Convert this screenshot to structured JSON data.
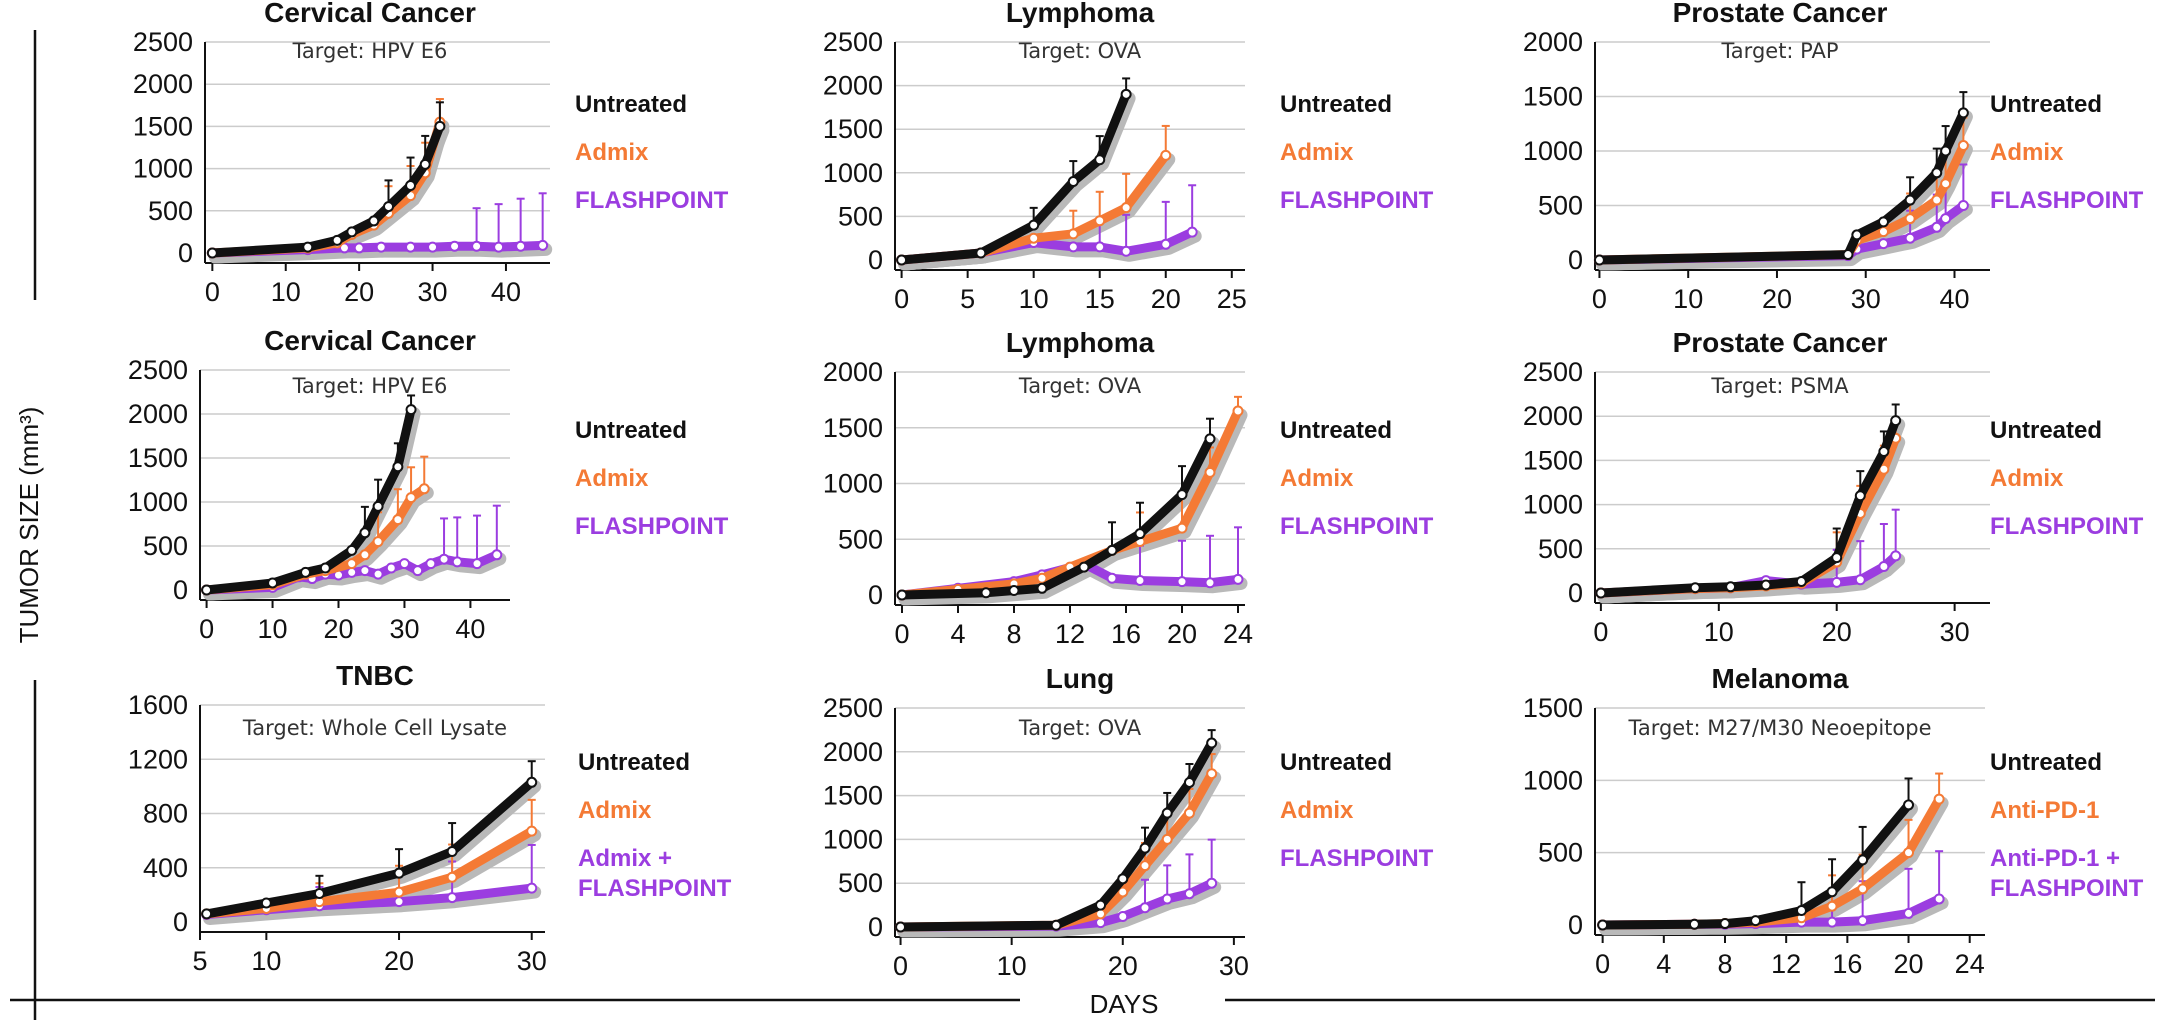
{
  "y_axis_label": "TUMOR SIZE (mm³)",
  "x_axis_label": "DAYS",
  "colors": {
    "untreated": "#111111",
    "admix": "#f47a35",
    "flashpoint": "#9b3de0",
    "shadow": "#b9b9b9",
    "grid": "#cccccc"
  },
  "chart_data": [
    {
      "type": "line",
      "title": "Cervical Cancer",
      "subtitle": "Target: HPV E6",
      "xticks": [
        0,
        10,
        20,
        30,
        40
      ],
      "yticks": [
        0,
        500,
        1000,
        1500,
        2000,
        2500
      ],
      "xlim": [
        -1,
        46
      ],
      "ylim": [
        0,
        2500
      ],
      "series": [
        {
          "name": "Untreated",
          "color": "#111111",
          "x": [
            0,
            13,
            17,
            19,
            22,
            24,
            27,
            29,
            31
          ],
          "y": [
            0,
            70,
            150,
            250,
            380,
            550,
            800,
            1050,
            1500
          ]
        },
        {
          "name": "Admix",
          "color": "#f47a35",
          "x": [
            0,
            13,
            17,
            19,
            22,
            24,
            27,
            29,
            31
          ],
          "y": [
            0,
            60,
            120,
            220,
            330,
            470,
            680,
            950,
            1550
          ]
        },
        {
          "name": "FLASHPOINT",
          "color": "#9b3de0",
          "x": [
            0,
            13,
            18,
            20,
            23,
            27,
            30,
            33,
            36,
            39,
            42,
            45
          ],
          "y": [
            0,
            40,
            60,
            60,
            70,
            70,
            70,
            80,
            80,
            70,
            80,
            90
          ]
        }
      ]
    },
    {
      "type": "line",
      "title": "Lymphoma",
      "subtitle": "Target: OVA",
      "xticks": [
        0,
        5,
        10,
        15,
        20,
        25
      ],
      "yticks": [
        0,
        500,
        1000,
        1500,
        2000,
        2500
      ],
      "xlim": [
        -0.5,
        26
      ],
      "ylim": [
        0,
        2500
      ],
      "series": [
        {
          "name": "Untreated",
          "color": "#111111",
          "x": [
            0,
            6,
            10,
            13,
            15,
            17
          ],
          "y": [
            0,
            80,
            400,
            900,
            1150,
            1900
          ]
        },
        {
          "name": "Admix",
          "color": "#f47a35",
          "x": [
            0,
            6,
            10,
            13,
            15,
            17,
            20
          ],
          "y": [
            0,
            80,
            250,
            300,
            450,
            600,
            1200
          ]
        },
        {
          "name": "FLASHPOINT",
          "color": "#9b3de0",
          "x": [
            0,
            6,
            10,
            13,
            15,
            17,
            20,
            22
          ],
          "y": [
            0,
            80,
            200,
            150,
            150,
            100,
            180,
            320
          ]
        }
      ]
    },
    {
      "type": "line",
      "title": "Prostate Cancer",
      "subtitle": "Target: PAP",
      "xticks": [
        0,
        10,
        20,
        30,
        40
      ],
      "yticks": [
        0,
        500,
        1000,
        1500,
        2000
      ],
      "xlim": [
        -0.5,
        44
      ],
      "ylim": [
        0,
        2000
      ],
      "series": [
        {
          "name": "Untreated",
          "color": "#111111",
          "x": [
            0,
            28,
            29,
            32,
            35,
            38,
            39,
            41
          ],
          "y": [
            0,
            50,
            230,
            350,
            550,
            800,
            1000,
            1350
          ]
        },
        {
          "name": "Admix",
          "color": "#f47a35",
          "x": [
            0,
            28,
            29,
            32,
            35,
            38,
            39,
            41
          ],
          "y": [
            0,
            50,
            180,
            260,
            380,
            550,
            700,
            1050
          ]
        },
        {
          "name": "FLASHPOINT",
          "color": "#9b3de0",
          "x": [
            0,
            28,
            29,
            32,
            35,
            38,
            39,
            41
          ],
          "y": [
            0,
            40,
            100,
            150,
            200,
            300,
            380,
            500
          ]
        }
      ]
    },
    {
      "type": "line",
      "title": "Cervical Cancer",
      "subtitle": "Target: HPV E6",
      "xticks": [
        0,
        10,
        20,
        30,
        40
      ],
      "yticks": [
        0,
        500,
        1000,
        1500,
        2000,
        2500
      ],
      "xlim": [
        -1,
        46
      ],
      "ylim": [
        0,
        2500
      ],
      "series": [
        {
          "name": "Untreated",
          "color": "#111111",
          "x": [
            0,
            10,
            15,
            18,
            22,
            24,
            26,
            29,
            31
          ],
          "y": [
            0,
            80,
            200,
            250,
            450,
            650,
            950,
            1400,
            2050
          ]
        },
        {
          "name": "Admix",
          "color": "#f47a35",
          "x": [
            0,
            10,
            15,
            18,
            22,
            24,
            26,
            29,
            31,
            33
          ],
          "y": [
            0,
            60,
            180,
            220,
            300,
            400,
            550,
            800,
            1050,
            1150
          ]
        },
        {
          "name": "FLASHPOINT",
          "color": "#9b3de0",
          "x": [
            0,
            10,
            14,
            16,
            18,
            20,
            22,
            24,
            26,
            28,
            30,
            32,
            34,
            36,
            38,
            41,
            44
          ],
          "y": [
            0,
            30,
            150,
            130,
            180,
            170,
            200,
            220,
            180,
            250,
            300,
            220,
            300,
            350,
            320,
            300,
            400
          ]
        }
      ]
    },
    {
      "type": "line",
      "title": "Lymphoma",
      "subtitle": "Target: OVA",
      "xticks": [
        0,
        4,
        8,
        12,
        16,
        20,
        24
      ],
      "yticks": [
        0,
        500,
        1000,
        1500,
        2000
      ],
      "xlim": [
        -0.5,
        24.5
      ],
      "ylim": [
        0,
        2000
      ],
      "series": [
        {
          "name": "Untreated",
          "color": "#111111",
          "x": [
            0,
            6,
            8,
            10,
            13,
            15,
            17,
            20,
            22
          ],
          "y": [
            0,
            20,
            40,
            60,
            250,
            400,
            550,
            900,
            1400
          ]
        },
        {
          "name": "Admix",
          "color": "#f47a35",
          "x": [
            0,
            4,
            8,
            10,
            12,
            15,
            17,
            20,
            22,
            24
          ],
          "y": [
            0,
            50,
            100,
            150,
            250,
            400,
            480,
            600,
            1100,
            1650
          ]
        },
        {
          "name": "FLASHPOINT",
          "color": "#9b3de0",
          "x": [
            0,
            4,
            8,
            10,
            13,
            15,
            17,
            20,
            22,
            24
          ],
          "y": [
            0,
            60,
            120,
            180,
            280,
            150,
            130,
            120,
            110,
            140
          ]
        }
      ]
    },
    {
      "type": "line",
      "title": "Prostate Cancer",
      "subtitle": "Target: PSMA",
      "xticks": [
        0,
        10,
        20,
        30
      ],
      "yticks": [
        0,
        500,
        1000,
        1500,
        2000,
        2500
      ],
      "xlim": [
        -0.5,
        33
      ],
      "ylim": [
        0,
        2500
      ],
      "series": [
        {
          "name": "Untreated",
          "color": "#111111",
          "x": [
            0,
            8,
            11,
            14,
            17,
            20,
            22,
            24,
            25
          ],
          "y": [
            0,
            60,
            70,
            90,
            130,
            400,
            1100,
            1600,
            1950
          ]
        },
        {
          "name": "Admix",
          "color": "#f47a35",
          "x": [
            0,
            8,
            11,
            14,
            17,
            20,
            22,
            24,
            25
          ],
          "y": [
            0,
            50,
            60,
            80,
            110,
            350,
            900,
            1400,
            1750
          ]
        },
        {
          "name": "FLASHPOINT",
          "color": "#9b3de0",
          "x": [
            0,
            8,
            11,
            14,
            17,
            20,
            22,
            24,
            25
          ],
          "y": [
            0,
            50,
            60,
            140,
            100,
            120,
            150,
            300,
            420
          ]
        }
      ]
    },
    {
      "type": "line",
      "title": "TNBC",
      "subtitle": "Target: Whole Cell Lysate",
      "xticks": [
        5,
        10,
        20,
        30
      ],
      "yticks": [
        0,
        400,
        800,
        1200,
        1600
      ],
      "xlim": [
        5,
        31
      ],
      "ylim": [
        0,
        1600
      ],
      "series": [
        {
          "name": "Untreated",
          "color": "#111111",
          "x": [
            5.5,
            10,
            14,
            20,
            24,
            30
          ],
          "y": [
            60,
            140,
            210,
            360,
            520,
            1030
          ]
        },
        {
          "name": "Admix",
          "color": "#f47a35",
          "x": [
            5.5,
            10,
            14,
            20,
            24,
            30
          ],
          "y": [
            60,
            100,
            150,
            220,
            330,
            670
          ]
        },
        {
          "name": "Admix + FLASHPOINT",
          "color": "#9b3de0",
          "x": [
            5.5,
            10,
            14,
            20,
            24,
            30
          ],
          "y": [
            55,
            90,
            120,
            150,
            180,
            250
          ]
        }
      ]
    },
    {
      "type": "line",
      "title": "Lung",
      "subtitle": "Target: OVA",
      "xticks": [
        0,
        10,
        20,
        30
      ],
      "yticks": [
        0,
        500,
        1000,
        1500,
        2000,
        2500
      ],
      "xlim": [
        -0.5,
        31
      ],
      "ylim": [
        0,
        2500
      ],
      "series": [
        {
          "name": "Untreated",
          "color": "#111111",
          "x": [
            0,
            14,
            18,
            20,
            22,
            24,
            26,
            28
          ],
          "y": [
            0,
            20,
            250,
            550,
            900,
            1300,
            1650,
            2100
          ]
        },
        {
          "name": "Admix",
          "color": "#f47a35",
          "x": [
            0,
            14,
            18,
            20,
            22,
            24,
            26,
            28
          ],
          "y": [
            0,
            20,
            150,
            400,
            700,
            1000,
            1300,
            1750
          ]
        },
        {
          "name": "FLASHPOINT",
          "color": "#9b3de0",
          "x": [
            0,
            14,
            18,
            20,
            22,
            24,
            26,
            28
          ],
          "y": [
            0,
            10,
            50,
            120,
            220,
            320,
            380,
            500
          ]
        }
      ]
    },
    {
      "type": "line",
      "title": "Melanoma",
      "subtitle": "Target: M27/M30 Neoepitope",
      "xticks": [
        0,
        4,
        8,
        12,
        16,
        20,
        24
      ],
      "yticks": [
        0,
        500,
        1000,
        1500
      ],
      "xlim": [
        -0.5,
        25
      ],
      "ylim": [
        0,
        1500
      ],
      "series": [
        {
          "name": "Untreated",
          "color": "#111111",
          "x": [
            0,
            6,
            8,
            10,
            13,
            15,
            17,
            20
          ],
          "y": [
            0,
            5,
            10,
            30,
            100,
            230,
            450,
            830
          ]
        },
        {
          "name": "Anti-PD-1",
          "color": "#f47a35",
          "x": [
            0,
            6,
            8,
            10,
            13,
            15,
            17,
            20,
            22
          ],
          "y": [
            0,
            5,
            10,
            20,
            50,
            130,
            250,
            500,
            870
          ]
        },
        {
          "name": "Anti-PD-1 + FLASHPOINT",
          "color": "#9b3de0",
          "x": [
            0,
            6,
            8,
            10,
            13,
            15,
            17,
            20,
            22
          ],
          "y": [
            0,
            5,
            5,
            10,
            20,
            20,
            30,
            80,
            180
          ]
        }
      ]
    }
  ]
}
